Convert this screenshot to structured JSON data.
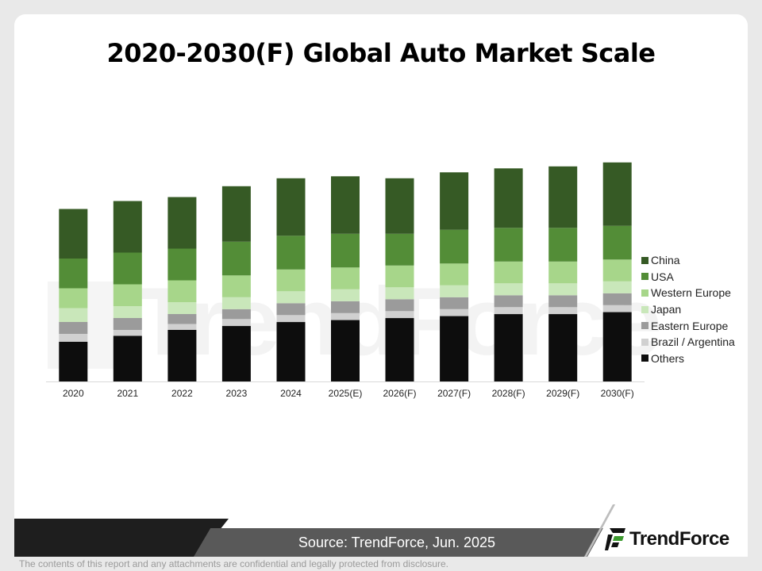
{
  "page": {
    "title": "2020-2030(F) Global Auto Market Scale",
    "source": "Source: TrendForce, Jun. 2025",
    "disclaimer": "The contents of this report and any attachments are confidential and legally protected from disclosure.",
    "logo_text": "TrendForce",
    "watermark_text": "TrendForce"
  },
  "colors": {
    "title": "#000000",
    "footer_dark": "#1e1e1e",
    "footer_gray": "#595959",
    "logo_green": "#3c9a2e"
  },
  "chart_data": {
    "type": "bar",
    "stacked": true,
    "title": "",
    "xlabel": "",
    "ylabel": "",
    "ylim": [
      0,
      120
    ],
    "grid": false,
    "y_axis_visible": false,
    "legend_position": "right",
    "categories": [
      "2020",
      "2021",
      "2022",
      "2023",
      "2024",
      "2025(E)",
      "2026(F)",
      "2027(F)",
      "2028(F)",
      "2029(F)",
      "2030(F)"
    ],
    "series": [
      {
        "name": "Others",
        "color": "#0d0d0d",
        "values": [
          20,
          23,
          26,
          28,
          30,
          31,
          32,
          33,
          34,
          34,
          35
        ]
      },
      {
        "name": "Brazil / Argentina",
        "color": "#d0d0d0",
        "values": [
          4,
          3,
          3,
          3.5,
          3.5,
          3.5,
          3.5,
          3.5,
          3.5,
          3.5,
          3.5
        ]
      },
      {
        "name": "Eastern Europe",
        "color": "#9b9b9b",
        "values": [
          6,
          6,
          5,
          5,
          6,
          6,
          6,
          6,
          6,
          6,
          6
        ]
      },
      {
        "name": "Japan",
        "color": "#c9e7ba",
        "values": [
          7,
          6,
          6,
          6,
          6,
          6,
          6,
          6,
          6,
          6,
          6
        ]
      },
      {
        "name": "Western Europe",
        "color": "#a7d68a",
        "values": [
          10,
          11,
          11,
          11,
          11,
          11,
          11,
          11,
          11,
          11,
          11
        ]
      },
      {
        "name": "USA",
        "color": "#538d37",
        "values": [
          15,
          16,
          16,
          17,
          17,
          17,
          16,
          17,
          17,
          17,
          17
        ]
      },
      {
        "name": "China",
        "color": "#365a25",
        "values": [
          25,
          26,
          26,
          28,
          29,
          29,
          28,
          29,
          30,
          31,
          32
        ]
      }
    ],
    "legend_order": [
      "China",
      "USA",
      "Western Europe",
      "Japan",
      "Eastern Europe",
      "Brazil / Argentina",
      "Others"
    ]
  }
}
